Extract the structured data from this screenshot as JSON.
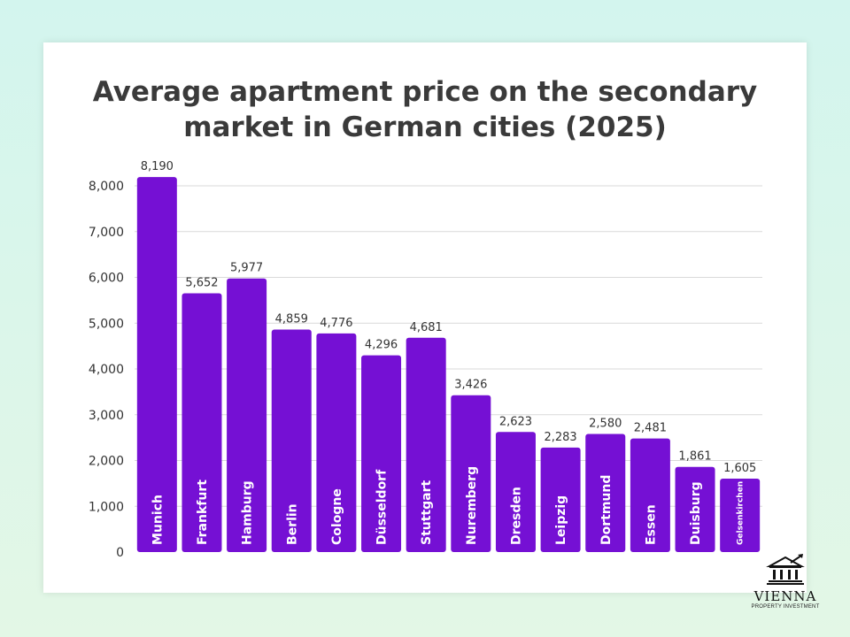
{
  "chart_data": {
    "type": "bar",
    "title_lines": [
      "Average apartment price on the secondary",
      "market in German cities (2025)"
    ],
    "categories": [
      "Munich",
      "Frankfurt",
      "Hamburg",
      "Berlin",
      "Cologne",
      "Düsseldorf",
      "Stuttgart",
      "Nuremberg",
      "Dresden",
      "Leipzig",
      "Dortmund",
      "Essen",
      "Duisburg",
      "Gelsenkirchen"
    ],
    "values": [
      8190,
      5652,
      5977,
      4859,
      4776,
      4296,
      4681,
      3426,
      2623,
      2283,
      2580,
      2481,
      1861,
      1605
    ],
    "value_labels": [
      "8,190",
      "5,652",
      "5,977",
      "4,859",
      "4,776",
      "4,296",
      "4,681",
      "3,426",
      "2,623",
      "2,283",
      "2,580",
      "2,481",
      "1,861",
      "1,605"
    ],
    "y_ticks": [
      "0",
      "1,000",
      "2,000",
      "3,000",
      "4,000",
      "5,000",
      "6,000",
      "7,000",
      "8,000"
    ],
    "ylim": [
      0,
      8000
    ],
    "grid": true,
    "bar_color": "#7510d4",
    "xlabel": "",
    "ylabel": ""
  },
  "brand": {
    "name": "VIENNA",
    "tagline": "PROPERTY INVESTMENT"
  }
}
